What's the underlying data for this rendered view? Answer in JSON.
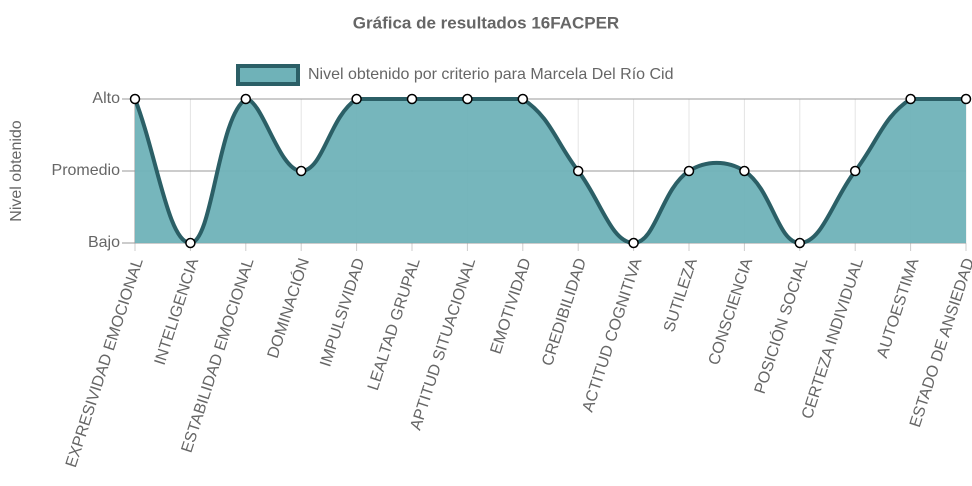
{
  "chart_data": {
    "type": "area",
    "title": "Gráfica de resultados 16FACPER",
    "y_label": "Nivel obtenido",
    "categories": [
      "EXPRESIVIDAD EMOCIONAL",
      "INTELIGENCIA",
      "ESTABILIDAD EMOCIONAL",
      "DOMINACIÓN",
      "IMPULSIVIDAD",
      "LEALTAD GRUPAL",
      "APTITUD SITUACIONAL",
      "EMOTIVIDAD",
      "CREDIBILIDAD",
      "ACTITUD COGNITIVA",
      "SUTILEZA",
      "CONSCIENCIA",
      "POSICIÓN SOCIAL",
      "CERTEZA INDIVIDUAL",
      "AUTOESTIMA",
      "ESTADO DE ANSIEDAD"
    ],
    "series": [
      {
        "name": "Nivel obtenido por criterio para Marcela Del Río Cid",
        "color": "#2b5f66",
        "fill": "#6fb2b8",
        "values": [
          3,
          1,
          3,
          2,
          3,
          3,
          3,
          3,
          2,
          1,
          2,
          2,
          1,
          2,
          3,
          3
        ]
      }
    ],
    "ylim": [
      1,
      3
    ],
    "yticks": [
      {
        "value": 1,
        "label": "Bajo"
      },
      {
        "value": 2,
        "label": "Promedio"
      },
      {
        "value": 3,
        "label": "Alto"
      }
    ],
    "grid": true,
    "legend": "top"
  }
}
